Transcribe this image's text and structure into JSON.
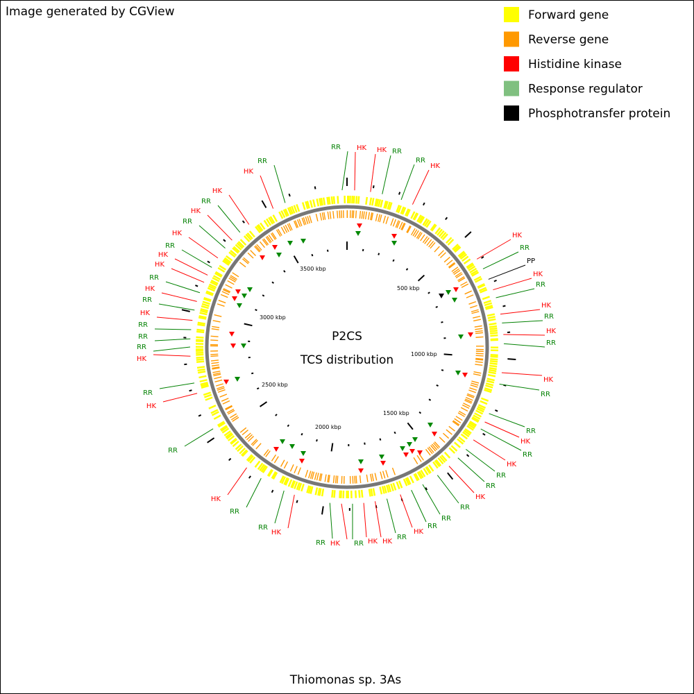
{
  "header": {
    "title": "Image generated by CGView"
  },
  "legend": [
    {
      "label": "Forward gene",
      "color": "#ffff00"
    },
    {
      "label": "Reverse gene",
      "color": "#ff9900"
    },
    {
      "label": "Histidine kinase",
      "color": "#ff0000"
    },
    {
      "label": "Response regulator",
      "color": "#80c080"
    },
    {
      "label": "Phosphotransfer protein",
      "color": "#000000"
    }
  ],
  "map": {
    "title": "P2CS",
    "subtitle": "TCS distribution",
    "organism": "Thiomonas sp. 3As",
    "scale_labels": [
      "500 kbp",
      "1000 kbp",
      "1500 kbp",
      "2000 kbp",
      "2500 kbp",
      "3000 kbp",
      "3500 kbp"
    ],
    "feature_labels": [
      {
        "text": "RR",
        "color": "#008000"
      },
      {
        "text": "HK",
        "color": "#ff0000"
      },
      {
        "text": "HK",
        "color": "#ff0000"
      },
      {
        "text": "RR",
        "color": "#008000"
      },
      {
        "text": "RR",
        "color": "#008000"
      },
      {
        "text": "HK",
        "color": "#ff0000"
      },
      {
        "text": "HK",
        "color": "#ff0000"
      },
      {
        "text": "RR",
        "color": "#008000"
      },
      {
        "text": "PP",
        "color": "#000000"
      },
      {
        "text": "HK",
        "color": "#ff0000"
      },
      {
        "text": "RR",
        "color": "#008000"
      },
      {
        "text": "HK",
        "color": "#ff0000"
      },
      {
        "text": "RR",
        "color": "#008000"
      },
      {
        "text": "HK",
        "color": "#ff0000"
      },
      {
        "text": "RR",
        "color": "#008000"
      },
      {
        "text": "HK",
        "color": "#ff0000"
      },
      {
        "text": "RR",
        "color": "#008000"
      },
      {
        "text": "RR",
        "color": "#008000"
      },
      {
        "text": "HK",
        "color": "#ff0000"
      },
      {
        "text": "RR",
        "color": "#008000"
      },
      {
        "text": "HK",
        "color": "#ff0000"
      },
      {
        "text": "RR",
        "color": "#008000"
      },
      {
        "text": "RR",
        "color": "#008000"
      },
      {
        "text": "HK",
        "color": "#ff0000"
      },
      {
        "text": "RR",
        "color": "#008000"
      },
      {
        "text": "RR",
        "color": "#008000"
      },
      {
        "text": "RR",
        "color": "#008000"
      },
      {
        "text": "HK",
        "color": "#ff0000"
      },
      {
        "text": "RR",
        "color": "#008000"
      },
      {
        "text": "HK",
        "color": "#ff0000"
      },
      {
        "text": "HK",
        "color": "#ff0000"
      },
      {
        "text": "RR",
        "color": "#008000"
      },
      {
        "text": "HK",
        "color": "#ff0000"
      },
      {
        "text": "RR",
        "color": "#008000"
      },
      {
        "text": "HK",
        "color": "#ff0000"
      },
      {
        "text": "RR",
        "color": "#008000"
      },
      {
        "text": "RR",
        "color": "#008000"
      },
      {
        "text": "HK",
        "color": "#ff0000"
      },
      {
        "text": "RR",
        "color": "#008000"
      },
      {
        "text": "HK",
        "color": "#ff0000"
      },
      {
        "text": "RR",
        "color": "#008000"
      },
      {
        "text": "HK",
        "color": "#ff0000"
      },
      {
        "text": "RR",
        "color": "#008000"
      },
      {
        "text": "RR",
        "color": "#008000"
      },
      {
        "text": "RR",
        "color": "#008000"
      },
      {
        "text": "HK",
        "color": "#ff0000"
      },
      {
        "text": "RR",
        "color": "#008000"
      },
      {
        "text": "HK",
        "color": "#ff0000"
      },
      {
        "text": "RR",
        "color": "#008000"
      },
      {
        "text": "HK",
        "color": "#ff0000"
      },
      {
        "text": "HK",
        "color": "#ff0000"
      },
      {
        "text": "RR",
        "color": "#008000"
      },
      {
        "text": "HK",
        "color": "#ff0000"
      },
      {
        "text": "RR",
        "color": "#008000"
      },
      {
        "text": "HK",
        "color": "#ff0000"
      },
      {
        "text": "RR",
        "color": "#008000"
      },
      {
        "text": "HK",
        "color": "#ff0000"
      },
      {
        "text": "HK",
        "color": "#ff0000"
      },
      {
        "text": "RR",
        "color": "#008000"
      }
    ]
  }
}
